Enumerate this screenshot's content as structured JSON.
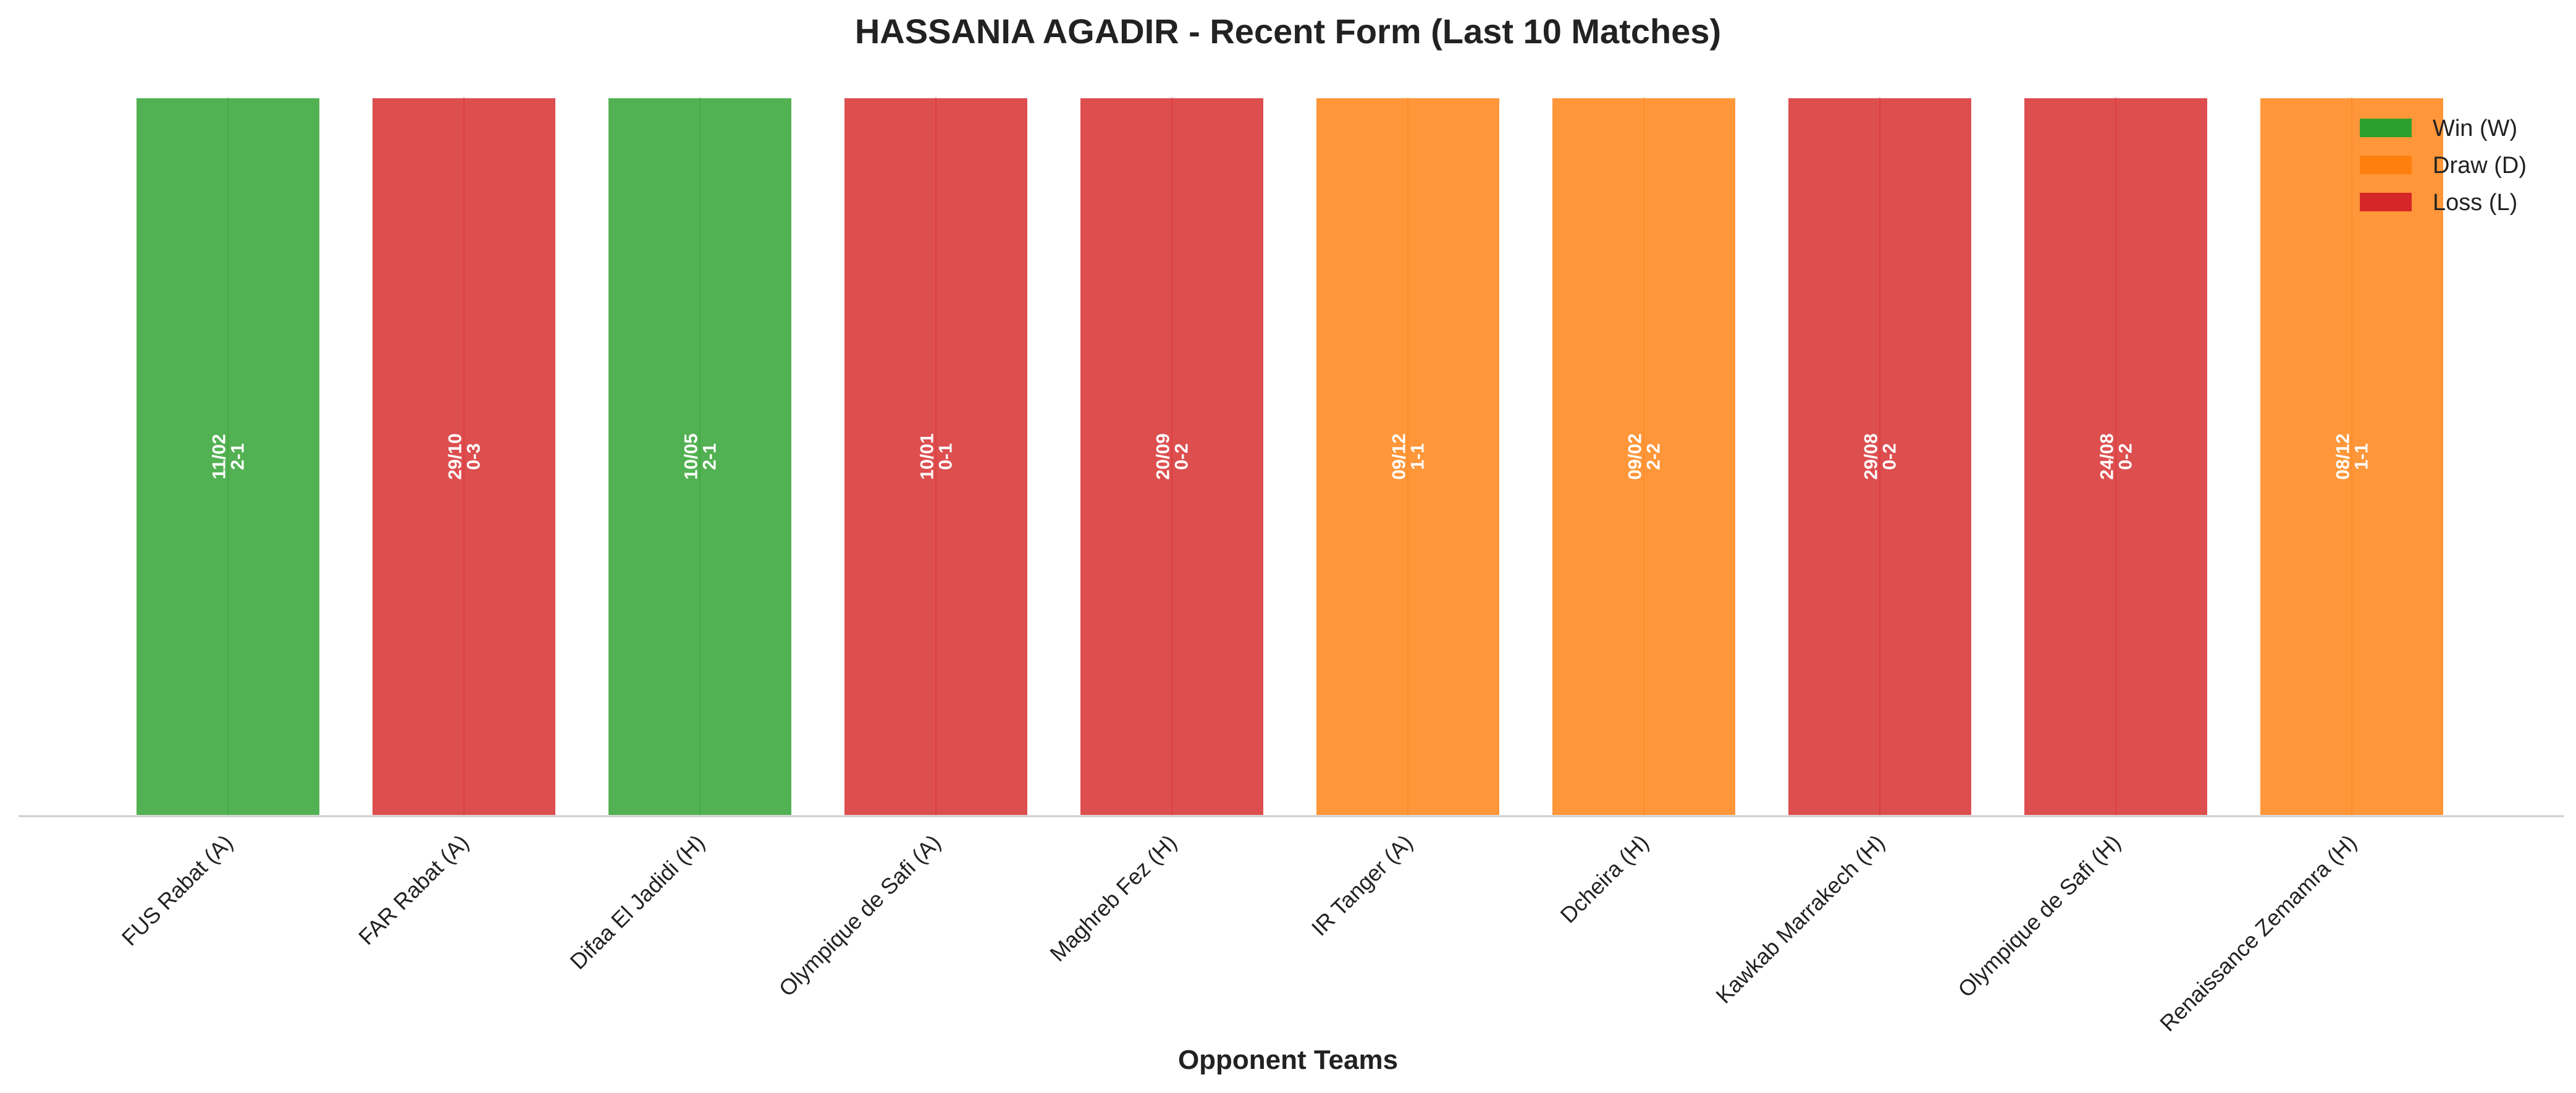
{
  "chart_data": {
    "type": "bar",
    "title": "HASSANIA AGADIR - Recent Form (Last 10 Matches)",
    "xlabel": "Opponent Teams",
    "ylabel": "",
    "ylim": [
      0,
      1
    ],
    "grid": false,
    "legend_position": "top-right",
    "categories": [
      "FUS Rabat (A)",
      "FAR Rabat (A)",
      "Difaa El Jadidi (H)",
      "Olympique de Safi (A)",
      "Maghreb Fez (H)",
      "IR Tanger (A)",
      "Dcheira (H)",
      "Kawkab Marrakech (H)",
      "Olympique de Safi (H)",
      "Renaissance Zemamra (H)"
    ],
    "values": [
      1,
      1,
      1,
      1,
      1,
      1,
      1,
      1,
      1,
      1
    ],
    "results": [
      "W",
      "L",
      "W",
      "L",
      "L",
      "D",
      "D",
      "L",
      "L",
      "D"
    ],
    "dates": [
      "11/02",
      "29/10",
      "10/05",
      "10/01",
      "20/09",
      "09/12",
      "09/02",
      "29/08",
      "24/08",
      "08/12"
    ],
    "scores": [
      "2-1",
      "0-3",
      "2-1",
      "0-1",
      "0-2",
      "1-1",
      "2-2",
      "0-2",
      "0-2",
      "1-1"
    ],
    "colors": {
      "W": "#2ca02c",
      "D": "#ff7f0e",
      "L": "#d62728"
    },
    "legend": [
      {
        "key": "W",
        "label": "Win (W)"
      },
      {
        "key": "D",
        "label": "Draw (D)"
      },
      {
        "key": "L",
        "label": "Loss (L)"
      }
    ]
  }
}
